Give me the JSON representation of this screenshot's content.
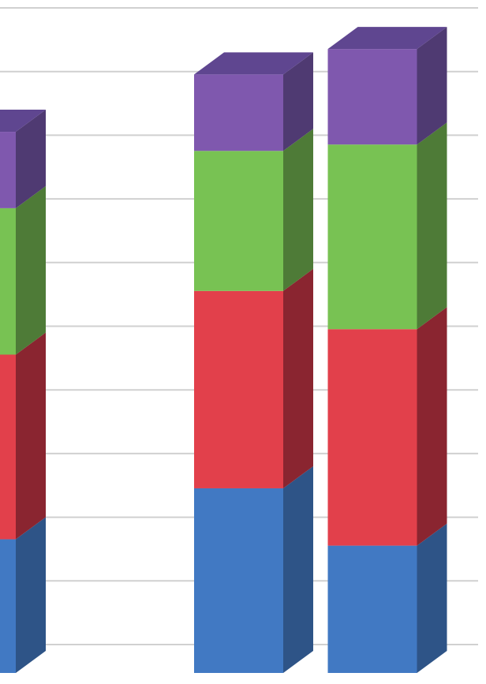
{
  "chart_data": {
    "type": "bar3d_stacked",
    "categories": [
      null,
      null,
      null,
      null
    ],
    "series": [
      {
        "color": "#4179c3",
        "side_color": "#2e5487",
        "values": [
          2.1,
          null,
          2.9,
          2.0
        ]
      },
      {
        "color": "#e2404b",
        "side_color": "#8a2530",
        "values": [
          2.9,
          null,
          3.1,
          3.4
        ]
      },
      {
        "color": "#78c253",
        "side_color": "#4e7b37",
        "values": [
          2.3,
          null,
          2.2,
          2.9
        ]
      },
      {
        "color": "#7f58ae",
        "side_color": "#4f3a72",
        "top_color": "#5f4690",
        "values": [
          1.2,
          null,
          1.2,
          1.5
        ]
      }
    ],
    "ylim": [
      0,
      10
    ],
    "yticks": [
      0,
      1,
      2,
      3,
      4,
      5,
      6,
      7,
      8,
      9,
      10
    ],
    "grid": true
  }
}
